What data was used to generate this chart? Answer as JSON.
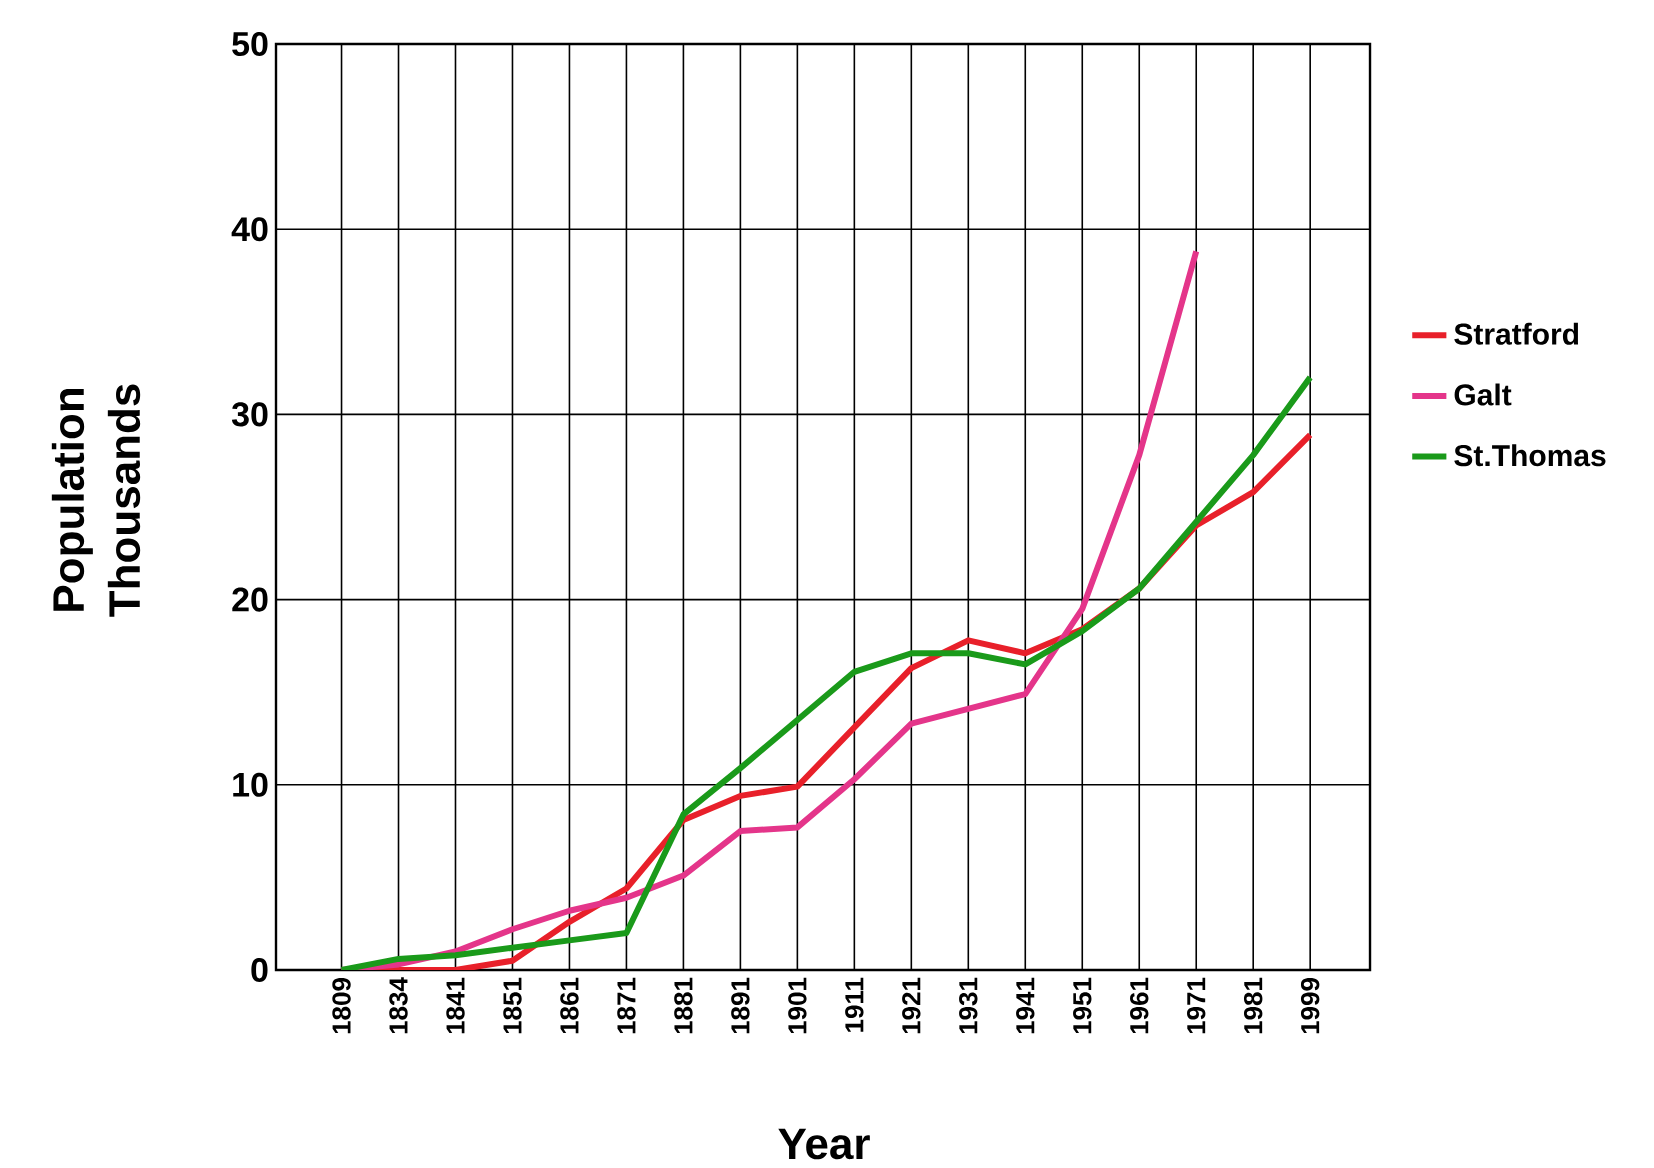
{
  "chart_data": {
    "type": "line",
    "xlabel": "Year",
    "ylabel": "Population Thousands",
    "categories": [
      "1809",
      "1834",
      "1841",
      "1851",
      "1861",
      "1871",
      "1881",
      "1891",
      "1901",
      "1911",
      "1921",
      "1931",
      "1941",
      "1951",
      "1961",
      "1971",
      "1981",
      "1999"
    ],
    "series": [
      {
        "name": "Stratford",
        "color": "#e8202a",
        "values": [
          0,
          0,
          0,
          0.5,
          2.6,
          4.4,
          8.1,
          9.4,
          9.9,
          13.1,
          16.3,
          17.8,
          17.1,
          18.4,
          20.6,
          24.0,
          25.8,
          28.9
        ]
      },
      {
        "name": "Galt",
        "color": "#e4358a",
        "values": [
          0,
          0.3,
          1.0,
          2.2,
          3.2,
          3.9,
          5.1,
          7.5,
          7.7,
          10.3,
          13.3,
          14.1,
          14.9,
          19.5,
          27.8,
          38.8,
          null,
          null
        ]
      },
      {
        "name": "St.Thomas",
        "color": "#1a9a1a",
        "values": [
          0,
          0.6,
          0.8,
          1.2,
          1.6,
          2.0,
          8.4,
          10.9,
          13.5,
          16.1,
          17.1,
          17.1,
          16.5,
          18.3,
          20.6,
          24.2,
          27.8,
          32.0
        ]
      }
    ],
    "ylim": [
      0,
      50
    ],
    "yticks": [
      0,
      10,
      20,
      30,
      40,
      50
    ],
    "grid": true,
    "legend": "right",
    "marker": "none",
    "line_style": "solid"
  }
}
